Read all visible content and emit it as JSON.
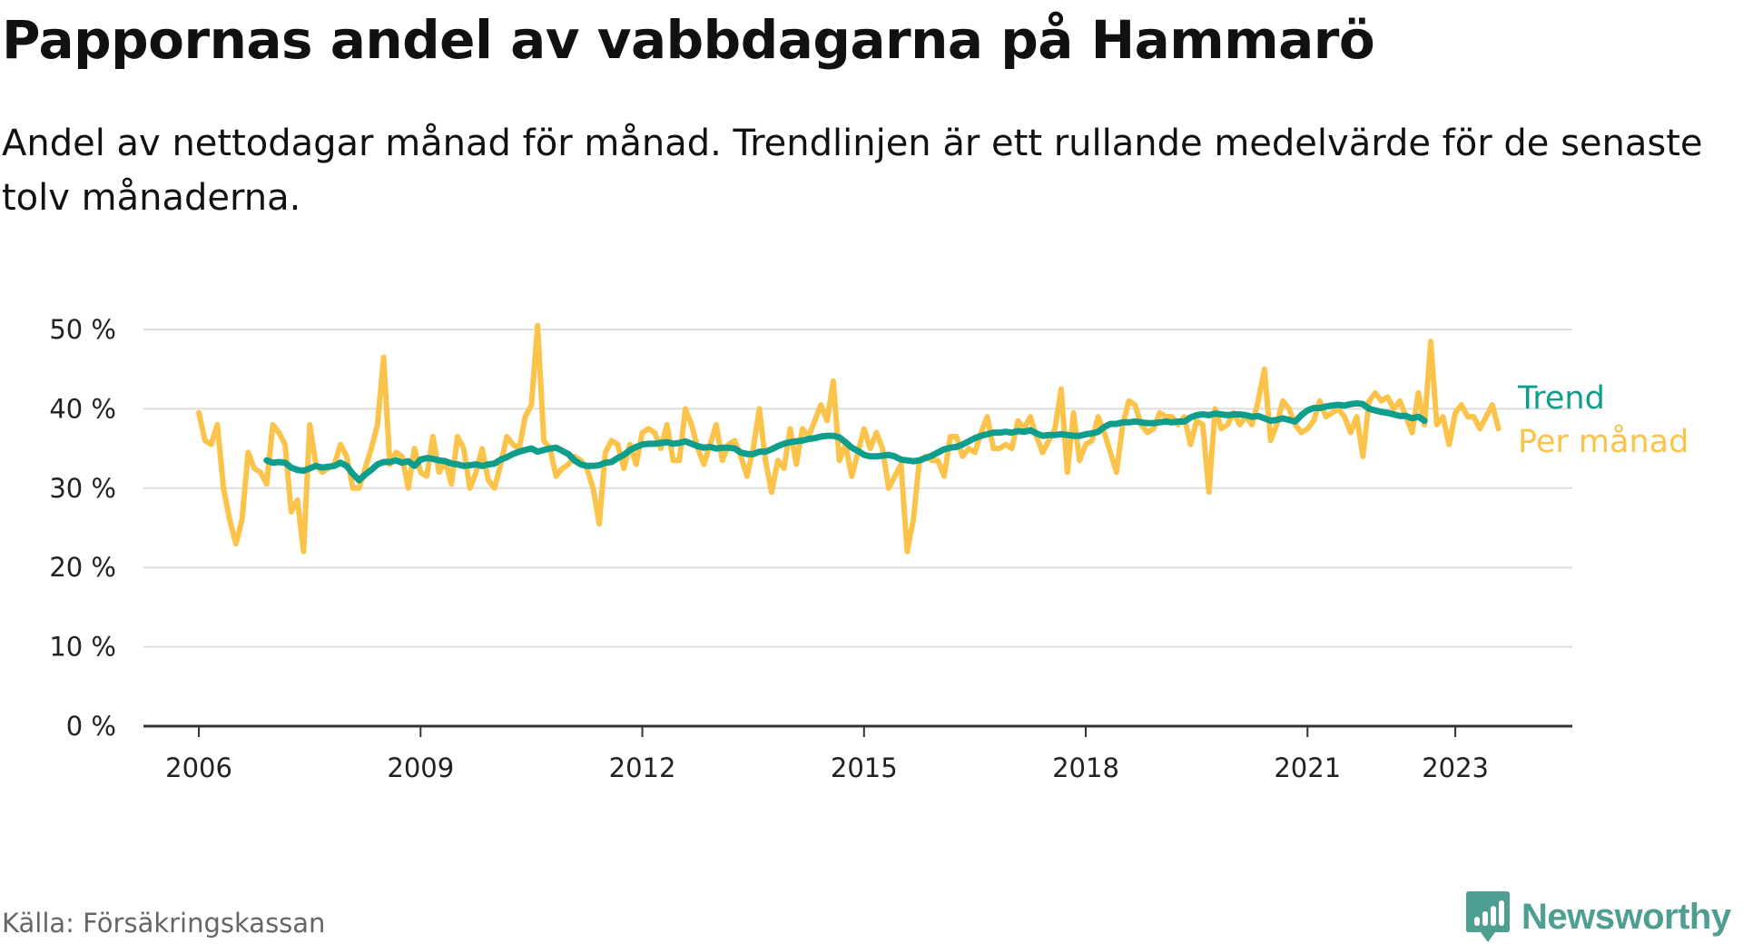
{
  "header": {
    "title": "Pappornas andel av vabbdagarna på Hammarö",
    "subtitle": "Andel av nettodagar månad för månad. Trendlinjen är ett rullande medelvärde för de senaste tolv månaderna."
  },
  "footer": {
    "source": "Källa: Försäkringskassan",
    "brand": "Newsworthy"
  },
  "colors": {
    "monthly": "#fbc34a",
    "trend": "#0f9d8c",
    "grid": "#dddddd",
    "axis": "#333333",
    "brand": "#4e9e91"
  },
  "chart_data": {
    "type": "line",
    "title": "Pappornas andel av vabbdagarna på Hammarö",
    "subtitle": "Andel av nettodagar månad för månad. Trendlinjen är ett rullande medelvärde för de senaste tolv månaderna.",
    "xlabel": "",
    "ylabel": "",
    "ylim": [
      0,
      50
    ],
    "xlim": [
      "2005-04",
      "2024-08"
    ],
    "y_ticks": [
      0,
      10,
      20,
      30,
      40,
      50
    ],
    "y_tick_labels": [
      "0 %",
      "10 %",
      "20 %",
      "30 %",
      "40 %",
      "50 %"
    ],
    "x_ticks": [
      "2006-01",
      "2009-01",
      "2012-01",
      "2015-01",
      "2018-01",
      "2021-01",
      "2023-01"
    ],
    "x_tick_labels": [
      "2006",
      "2009",
      "2012",
      "2015",
      "2018",
      "2021",
      "2023"
    ],
    "grid": true,
    "legend": "right of last point",
    "start_month": "2006-01",
    "series": [
      {
        "name": "Per månad",
        "values": [
          39.5,
          36,
          35.5,
          38,
          30,
          26,
          23,
          26,
          34.5,
          32.5,
          32,
          30.5,
          38,
          37,
          35.5,
          27,
          28.5,
          22,
          38,
          33,
          32,
          32.5,
          33,
          35.5,
          34,
          30,
          30,
          32.5,
          35,
          38,
          46.5,
          33,
          34.5,
          34,
          30,
          35,
          32,
          31.5,
          36.5,
          32,
          33.5,
          30.5,
          36.5,
          35,
          30,
          32,
          35,
          31,
          30,
          33,
          36.5,
          35.5,
          35,
          39,
          40.5,
          50.5,
          36,
          35,
          31.5,
          32.5,
          33,
          34,
          33.5,
          32.5,
          30,
          25.5,
          34.5,
          36,
          35.5,
          32.5,
          35.5,
          33,
          37,
          37.5,
          37,
          35,
          38,
          33.5,
          33.5,
          40,
          38,
          35,
          33,
          35.5,
          38,
          33.5,
          35.5,
          36,
          34,
          31.5,
          35,
          40,
          33.5,
          29.5,
          33.5,
          32.5,
          37.5,
          33,
          37.5,
          36.5,
          38.5,
          40.5,
          38.5,
          43.5,
          33.5,
          35.5,
          31.5,
          34.5,
          37.5,
          35,
          37,
          35,
          30,
          31.5,
          33,
          22,
          26,
          33.5,
          34,
          33.5,
          33.5,
          31.5,
          36.5,
          36.5,
          34,
          35,
          34.5,
          37,
          39,
          35,
          35,
          35.5,
          35,
          38.5,
          37.5,
          39,
          36.5,
          34.5,
          36,
          37.5,
          42.5,
          32,
          39.5,
          33.5,
          35.5,
          36,
          39,
          37,
          34.5,
          32,
          38,
          41,
          40.5,
          38,
          37,
          37.5,
          39.5,
          39,
          39,
          38,
          39,
          35.5,
          38.5,
          38,
          29.5,
          40,
          37.5,
          38,
          39.5,
          38,
          39,
          38,
          41,
          45,
          36,
          38,
          41,
          40,
          38,
          37,
          37.5,
          38.5,
          41,
          39,
          39.5,
          40,
          39,
          37,
          39,
          34,
          41,
          42,
          41,
          41.5,
          40,
          41,
          39,
          37,
          42,
          38,
          48.5,
          38,
          39,
          35.5,
          39.5,
          40.5,
          39,
          39,
          37.5,
          39,
          40.5,
          37.5
        ],
        "color": "#fbc34a"
      },
      {
        "name": "Trend",
        "start_month": "2006-12",
        "values": [
          33.5,
          33.2,
          33.3,
          33.2,
          32.6,
          32.3,
          32.2,
          32.5,
          32.8,
          32.6,
          32.7,
          32.8,
          33.2,
          32.8,
          31.8,
          31,
          31.7,
          32.3,
          33,
          33.3,
          33.3,
          33.5,
          33.2,
          33.4,
          32.8,
          33.6,
          33.8,
          33.7,
          33.5,
          33.4,
          33.1,
          33,
          32.8,
          32.9,
          33,
          32.8,
          33,
          33.1,
          33.6,
          33.9,
          34.3,
          34.6,
          34.8,
          35,
          34.6,
          34.8,
          35,
          35.1,
          34.7,
          34.3,
          33.5,
          33,
          32.8,
          32.8,
          32.9,
          33.2,
          33.3,
          33.8,
          34.2,
          34.8,
          35.2,
          35.5,
          35.6,
          35.6,
          35.7,
          35.8,
          35.6,
          35.7,
          35.9,
          35.6,
          35.3,
          35.1,
          35.2,
          35,
          35.1,
          35.1,
          35,
          34.5,
          34.3,
          34.3,
          34.6,
          34.6,
          34.9,
          35.3,
          35.6,
          35.8,
          35.9,
          36,
          36.2,
          36.3,
          36.5,
          36.6,
          36.6,
          36.4,
          35.8,
          35.1,
          34.7,
          34.2,
          34,
          34,
          34.1,
          34.2,
          34,
          33.6,
          33.5,
          33.4,
          33.5,
          33.8,
          34.1,
          34.5,
          34.9,
          35.1,
          35.2,
          35.5,
          35.9,
          36.3,
          36.6,
          36.8,
          37,
          37,
          37.1,
          37,
          37.2,
          37.1,
          37.3,
          36.9,
          36.6,
          36.7,
          36.7,
          36.8,
          36.7,
          36.6,
          36.6,
          36.8,
          36.9,
          37.1,
          37.7,
          38.1,
          38.1,
          38.3,
          38.3,
          38.4,
          38.3,
          38.2,
          38.2,
          38.3,
          38.4,
          38.3,
          38.4,
          38.4,
          38.9,
          39.2,
          39.3,
          39.2,
          39.4,
          39.3,
          39.2,
          39.3,
          39.3,
          39.2,
          39,
          39.1,
          38.8,
          38.5,
          38.6,
          38.8,
          38.6,
          38.4,
          39.2,
          39.8,
          40.1,
          40.1,
          40.3,
          40.4,
          40.5,
          40.4,
          40.6,
          40.7,
          40.6,
          40,
          39.8,
          39.6,
          39.5,
          39.3,
          39.1,
          39.1,
          38.8,
          39,
          38.5
        ]
      }
    ]
  }
}
